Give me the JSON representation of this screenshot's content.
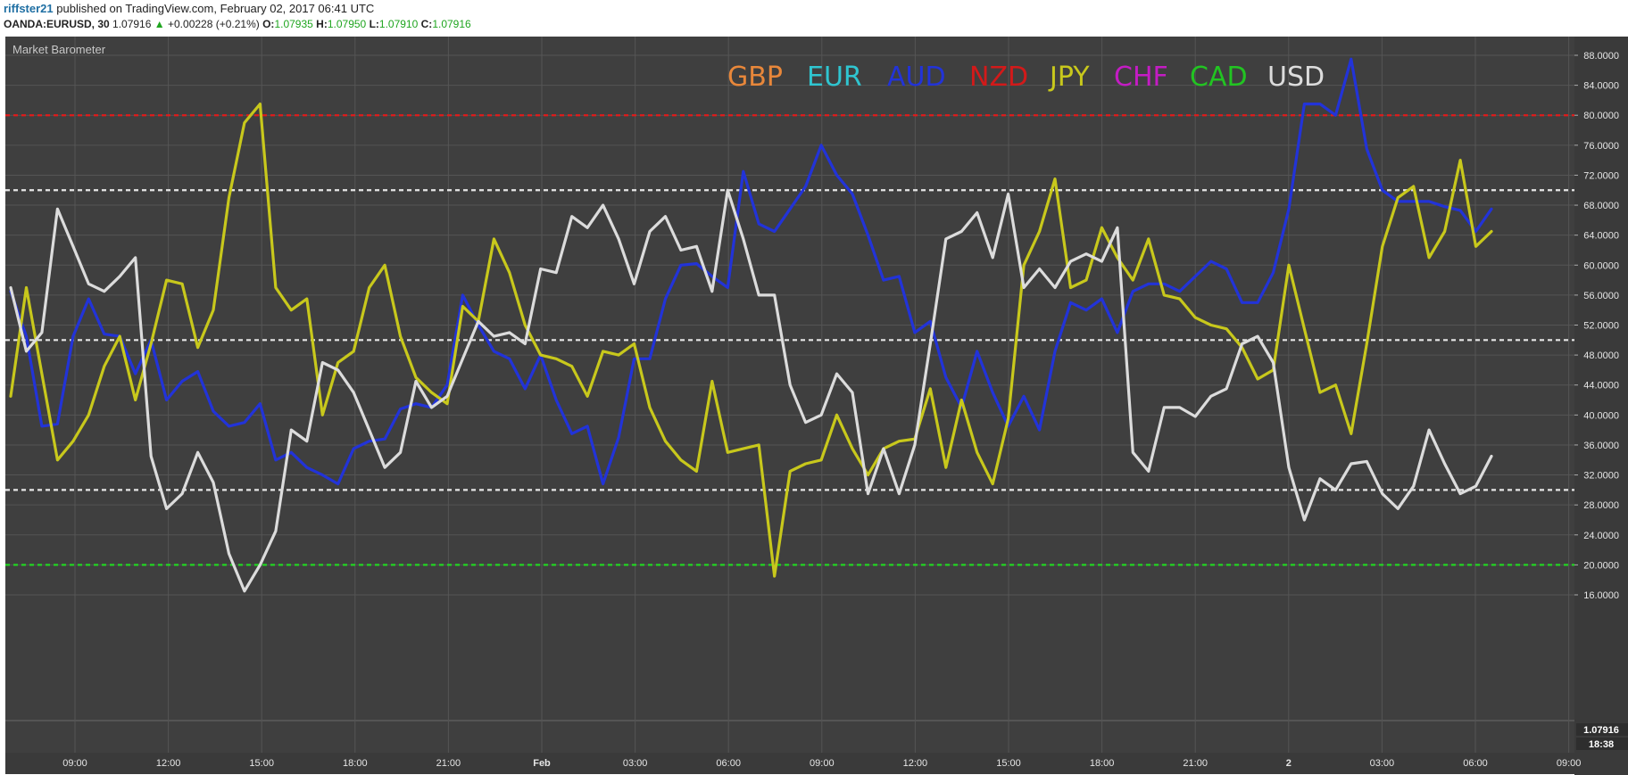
{
  "header": {
    "author": "riffster21",
    "published_text": "published on TradingView.com, February 02, 2017 06:41 UTC",
    "symbol": "OANDA:EURUSD, 30",
    "last_price": "1.07916",
    "change_arrow": "▲",
    "change": "+0.00228 (+0.21%)",
    "open_label": "O:",
    "open": "1.07935",
    "high_label": "H:",
    "high": "1.07950",
    "low_label": "L:",
    "low": "1.07910",
    "close_label": "C:",
    "close": "1.07916"
  },
  "colors": {
    "background": "#3f3f3f",
    "grid": "#555555",
    "red_level": "#e01b1b",
    "white_level": "#e6e6e6",
    "green_level": "#22d422"
  },
  "chart_data": {
    "type": "line",
    "title": "Market Barometer",
    "ylim": [
      12,
      90
    ],
    "ytick_labels": [
      "88.0000",
      "84.0000",
      "80.0000",
      "76.0000",
      "72.0000",
      "68.0000",
      "64.0000",
      "60.0000",
      "56.0000",
      "52.0000",
      "48.0000",
      "44.0000",
      "40.0000",
      "36.0000",
      "32.0000",
      "28.0000",
      "24.0000",
      "20.0000",
      "16.0000"
    ],
    "price_scale_label": "1.07916",
    "time_scale_label": "18:38",
    "xtick_labels": [
      "09:00",
      "12:00",
      "15:00",
      "18:00",
      "21:00",
      "Feb",
      "03:00",
      "06:00",
      "09:00",
      "12:00",
      "15:00",
      "18:00",
      "21:00",
      "2",
      "03:00",
      "06:00",
      "09:00"
    ],
    "legend_entries": [
      {
        "name": "GBP",
        "color": "#e8873a"
      },
      {
        "name": "EUR",
        "color": "#2fc5d0"
      },
      {
        "name": "AUD",
        "color": "#2233d8"
      },
      {
        "name": "NZD",
        "color": "#d21a1a"
      },
      {
        "name": "JPY",
        "color": "#c8c81c"
      },
      {
        "name": "CHF",
        "color": "#c41cc4"
      },
      {
        "name": "CAD",
        "color": "#22c422"
      },
      {
        "name": "USD",
        "color": "#dcdcdc"
      }
    ],
    "legend_position": "top-center",
    "horizontal_levels": [
      {
        "value": 80,
        "color": "#e01b1b"
      },
      {
        "value": 70,
        "color": "#e6e6e6"
      },
      {
        "value": 50,
        "color": "#e6e6e6"
      },
      {
        "value": 30,
        "color": "#e6e6e6"
      },
      {
        "value": 20,
        "color": "#22d422"
      }
    ],
    "series": [
      {
        "name": "AUD",
        "color": "#2233d8",
        "values": [
          56.5,
          50.5,
          38.5,
          38.8,
          50.5,
          55.5,
          50.8,
          50.5,
          45.5,
          50.0,
          42.0,
          44.5,
          45.8,
          40.5,
          38.5,
          39.0,
          41.5,
          34.0,
          35.0,
          33.0,
          32.0,
          30.8,
          35.5,
          36.5,
          36.8,
          40.8,
          41.5,
          41.0,
          44.0,
          56.0,
          52.0,
          48.5,
          47.5,
          43.5,
          48.0,
          42.0,
          37.5,
          38.5,
          30.8,
          37.0,
          47.5,
          47.5,
          55.5,
          60.0,
          60.2,
          58.5,
          57.0,
          72.5,
          65.5,
          64.5,
          67.5,
          70.5,
          76.0,
          72.0,
          69.5,
          64.0,
          58.0,
          58.5,
          51.0,
          52.5,
          45.0,
          41.0,
          48.5,
          43.0,
          38.5,
          42.5,
          38.0,
          48.5,
          55.0,
          54.0,
          55.5,
          51.0,
          56.5,
          57.5,
          57.5,
          56.5,
          58.5,
          60.5,
          59.5,
          55.0,
          55.0,
          59.0,
          67.5,
          81.5,
          81.5,
          80.0,
          87.5,
          75.5,
          70.0,
          68.5,
          68.5,
          68.5,
          67.8,
          67.3,
          64.5,
          67.5
        ]
      },
      {
        "name": "JPY",
        "color": "#c8c81c",
        "values": [
          42.5,
          57.0,
          45.5,
          34.0,
          36.5,
          40.0,
          46.5,
          50.5,
          42.0,
          49.5,
          58.0,
          57.5,
          49.0,
          54.0,
          69.0,
          79.0,
          81.5,
          57.0,
          54.0,
          55.5,
          40.0,
          47.0,
          48.5,
          57.0,
          60.0,
          50.5,
          45.0,
          43.0,
          41.5,
          54.5,
          52.5,
          63.5,
          59.0,
          52.0,
          48.0,
          47.5,
          46.5,
          42.5,
          48.5,
          48.0,
          49.5,
          41.0,
          36.5,
          34.0,
          32.5,
          44.5,
          35.0,
          35.5,
          36.0,
          18.5,
          32.5,
          33.5,
          34.0,
          40.0,
          35.5,
          32.0,
          35.5,
          36.5,
          36.8,
          43.5,
          33.0,
          42.0,
          35.0,
          30.8,
          39.5,
          60.0,
          64.5,
          71.5,
          57.0,
          58.0,
          65.0,
          61.0,
          58.0,
          63.5,
          56.0,
          55.5,
          53.0,
          52.0,
          51.5,
          49.0,
          44.8,
          46.0,
          60.0,
          51.5,
          43.0,
          44.0,
          37.5,
          49.5,
          62.5,
          69.0,
          70.5,
          61.0,
          64.5,
          74.0,
          62.5,
          64.5
        ]
      },
      {
        "name": "USD",
        "color": "#dcdcdc",
        "values": [
          57.0,
          48.5,
          51.0,
          67.5,
          62.5,
          57.5,
          56.5,
          58.5,
          61.0,
          34.5,
          27.5,
          29.5,
          35.0,
          31.0,
          21.5,
          16.5,
          20.0,
          24.5,
          38.0,
          36.5,
          47.0,
          46.0,
          43.0,
          38.0,
          33.0,
          35.0,
          44.5,
          41.0,
          42.5,
          47.5,
          52.5,
          50.5,
          51.0,
          49.5,
          59.5,
          59.0,
          66.5,
          65.0,
          68.0,
          63.5,
          57.5,
          64.5,
          66.5,
          62.0,
          62.5,
          56.5,
          70.0,
          63.5,
          56.0,
          56.0,
          44.0,
          39.0,
          40.0,
          45.5,
          43.0,
          29.5,
          35.5,
          29.5,
          36.0,
          49.5,
          63.5,
          64.5,
          67.0,
          61.0,
          69.5,
          57.0,
          59.5,
          57.0,
          60.5,
          61.5,
          60.5,
          65.0,
          35.0,
          32.5,
          41.0,
          41.0,
          39.8,
          42.5,
          43.5,
          49.5,
          50.5,
          47.0,
          33.0,
          26.0,
          31.5,
          30.0,
          33.5,
          33.8,
          29.5,
          27.5,
          30.5,
          38.0,
          33.5,
          29.5,
          30.5,
          34.5
        ]
      }
    ]
  }
}
